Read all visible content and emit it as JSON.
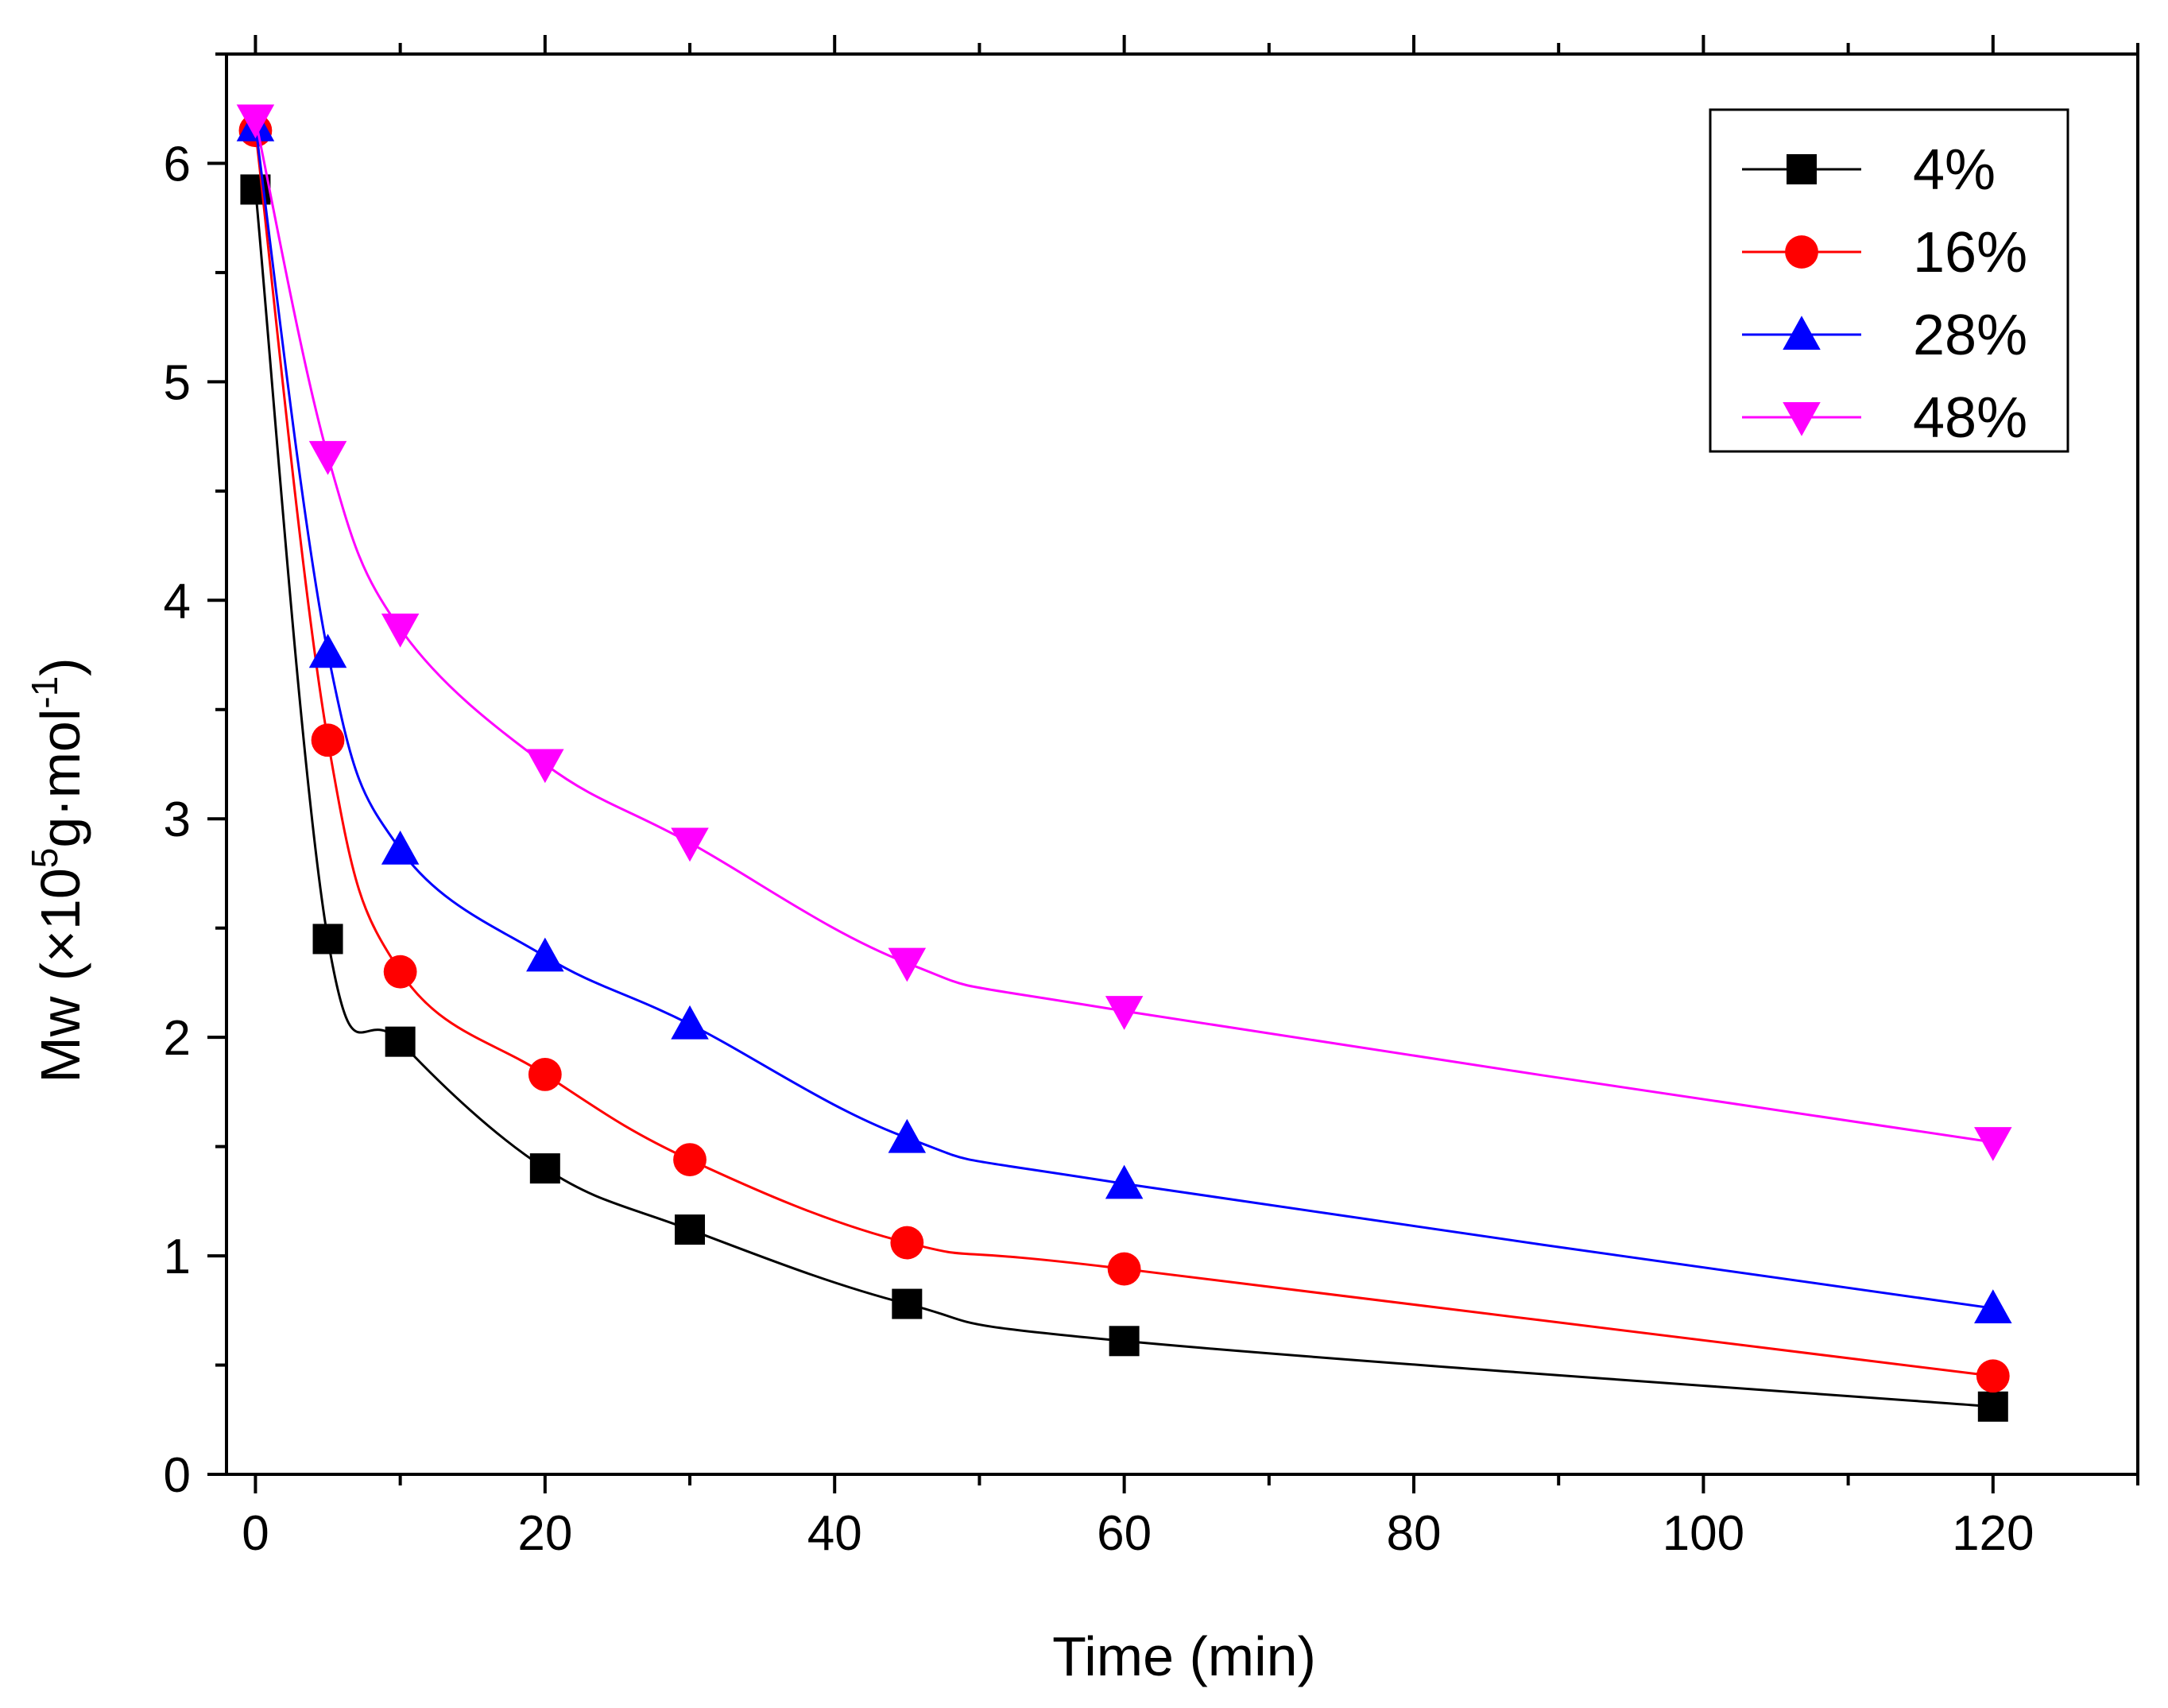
{
  "chart_data": {
    "type": "line",
    "title": "",
    "xlabel": "Time (min)",
    "ylabel": {
      "prefix": "Mw (×10",
      "exp1": "5",
      "middle": "g·mol",
      "exp2": "-1",
      "suffix": ")"
    },
    "xlim": [
      -2,
      130
    ],
    "ylim": [
      0,
      6.5
    ],
    "xticks": [
      0,
      20,
      40,
      60,
      80,
      100,
      120
    ],
    "yticks": [
      0,
      1,
      2,
      3,
      4,
      5,
      6
    ],
    "x": [
      0,
      5,
      10,
      20,
      30,
      45,
      60,
      120
    ],
    "series": [
      {
        "name": "4%",
        "color": "#000000",
        "marker": "square",
        "values": [
          5.88,
          2.45,
          1.98,
          1.4,
          1.12,
          0.78,
          0.61,
          0.31
        ]
      },
      {
        "name": "16%",
        "color": "#ff0000",
        "marker": "circle",
        "values": [
          6.15,
          3.36,
          2.3,
          1.83,
          1.44,
          1.06,
          0.94,
          0.45
        ]
      },
      {
        "name": "28%",
        "color": "#0000ff",
        "marker": "triangle-up",
        "values": [
          6.17,
          3.76,
          2.86,
          2.37,
          2.06,
          1.54,
          1.33,
          0.76
        ]
      },
      {
        "name": "48%",
        "color": "#ff00ff",
        "marker": "triangle-down",
        "values": [
          6.2,
          4.66,
          3.87,
          3.25,
          2.89,
          2.34,
          2.12,
          1.52
        ]
      }
    ],
    "legend": "top-right",
    "grid": false
  }
}
